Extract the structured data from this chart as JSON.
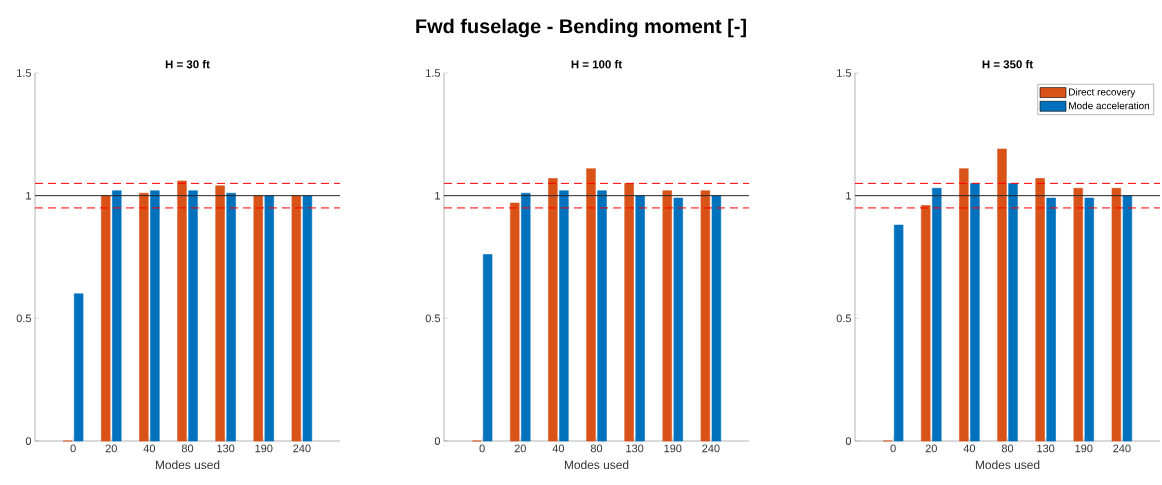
{
  "chart_data": [
    {
      "type": "other",
      "title": "Fwd fuselage - Bending moment [-]"
    },
    {
      "type": "bar",
      "title": "H = 30 ft",
      "xlabel": "Modes used",
      "categories": [
        "0",
        "20",
        "40",
        "80",
        "130",
        "190",
        "240"
      ],
      "ylim": [
        0,
        1.5
      ],
      "yticks": [
        0,
        0.5,
        1,
        1.5
      ],
      "series": [
        {
          "color": "#d95319",
          "values": [
            0,
            1.0,
            1.01,
            1.06,
            1.04,
            1.0,
            1.0
          ]
        },
        {
          "color": "#0072bd",
          "values": [
            0.6,
            1.02,
            1.02,
            1.02,
            1.01,
            1.0,
            1.0
          ]
        }
      ],
      "ref_lines": [
        {
          "axis": "y",
          "value": 1,
          "color": "#262626",
          "line_style": "solid"
        },
        {
          "axis": "y",
          "value": 1.05,
          "color": "#ff0000",
          "line_style": "dashed"
        },
        {
          "axis": "y",
          "value": 0.95,
          "color": "#ff0000",
          "line_style": "dashed"
        }
      ]
    },
    {
      "type": "bar",
      "title": "H = 100 ft",
      "xlabel": "Modes used",
      "categories": [
        "0",
        "20",
        "40",
        "80",
        "130",
        "190",
        "240"
      ],
      "ylim": [
        0,
        1.5
      ],
      "yticks": [
        0,
        0.5,
        1,
        1.5
      ],
      "series": [
        {
          "color": "#d95319",
          "values": [
            0,
            0.97,
            1.07,
            1.11,
            1.05,
            1.02,
            1.02
          ]
        },
        {
          "color": "#0072bd",
          "values": [
            0.76,
            1.01,
            1.02,
            1.02,
            1.0,
            0.99,
            1.0
          ]
        }
      ],
      "ref_lines": [
        {
          "axis": "y",
          "value": 1,
          "color": "#262626",
          "line_style": "solid"
        },
        {
          "axis": "y",
          "value": 1.05,
          "color": "#ff0000",
          "line_style": "dashed"
        },
        {
          "axis": "y",
          "value": 0.95,
          "color": "#ff0000",
          "line_style": "dashed"
        }
      ]
    },
    {
      "type": "bar",
      "title": "H = 350 ft",
      "xlabel": "Modes used",
      "categories": [
        "0",
        "20",
        "40",
        "80",
        "130",
        "190",
        "240"
      ],
      "ylim": [
        0,
        1.5
      ],
      "yticks": [
        0,
        0.5,
        1,
        1.5
      ],
      "legend": "top right",
      "series": [
        {
          "name": "Direct recovery",
          "color": "#d95319",
          "values": [
            0,
            0.96,
            1.11,
            1.19,
            1.07,
            1.03,
            1.03
          ]
        },
        {
          "name": "Mode acceleration",
          "color": "#0072bd",
          "values": [
            0.88,
            1.03,
            1.05,
            1.05,
            0.99,
            0.99,
            1.0
          ]
        }
      ],
      "ref_lines": [
        {
          "axis": "y",
          "value": 1,
          "color": "#262626",
          "line_style": "solid"
        },
        {
          "axis": "y",
          "value": 1.05,
          "color": "#ff0000",
          "line_style": "dashed"
        },
        {
          "axis": "y",
          "value": 0.95,
          "color": "#ff0000",
          "line_style": "dashed"
        }
      ]
    }
  ]
}
